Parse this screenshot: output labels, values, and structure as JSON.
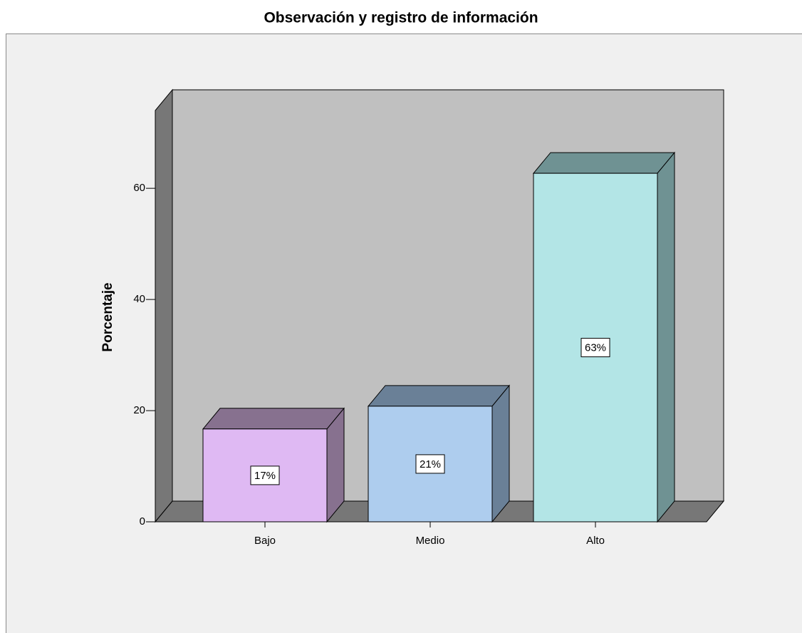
{
  "chart_data": {
    "type": "bar3d",
    "title": "Observación y registro de información",
    "y_label": "Porcentaje",
    "categories": [
      "Bajo",
      "Medio",
      "Alto"
    ],
    "values": [
      16.7,
      20.8,
      62.7
    ],
    "value_labels": [
      "17%",
      "21%",
      "63%"
    ],
    "colors": [
      "#dfb9f3",
      "#aecdee",
      "#b3e5e6"
    ],
    "side_colors": [
      "#87718f",
      "#6a8097",
      "#6f9293"
    ],
    "ylim": [
      0,
      74
    ],
    "yticks": [
      0,
      20,
      40,
      60
    ]
  }
}
